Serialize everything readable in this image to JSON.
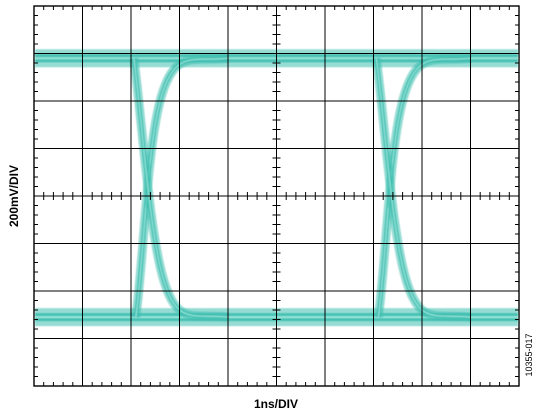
{
  "chart_data": {
    "type": "line",
    "subtype": "eye-diagram",
    "xlabel": "1ns/DIV",
    "ylabel": "200mV/DIV",
    "figure_id": "10355-017",
    "x_divisions": 10,
    "y_divisions": 8,
    "x_range_div": [
      0,
      10
    ],
    "y_range_div": [
      -4,
      4
    ],
    "grid": true,
    "minor_ticks_per_div": 5,
    "trace_color": "#3fbfb0",
    "trace_core_color": "#9fe8df",
    "high_level_div": 2.9,
    "low_level_div": -2.55,
    "transitions": [
      {
        "crossing_x_div": 2.45,
        "rise_start_x_div": 2.1,
        "fall_end_x_div": 3.8
      },
      {
        "crossing_x_div": 7.45,
        "rise_start_x_div": 7.1,
        "fall_end_x_div": 8.8
      }
    ]
  },
  "colors": {
    "background": "#ffffff",
    "grid": "#000000",
    "trace": "#3fbfb0"
  }
}
